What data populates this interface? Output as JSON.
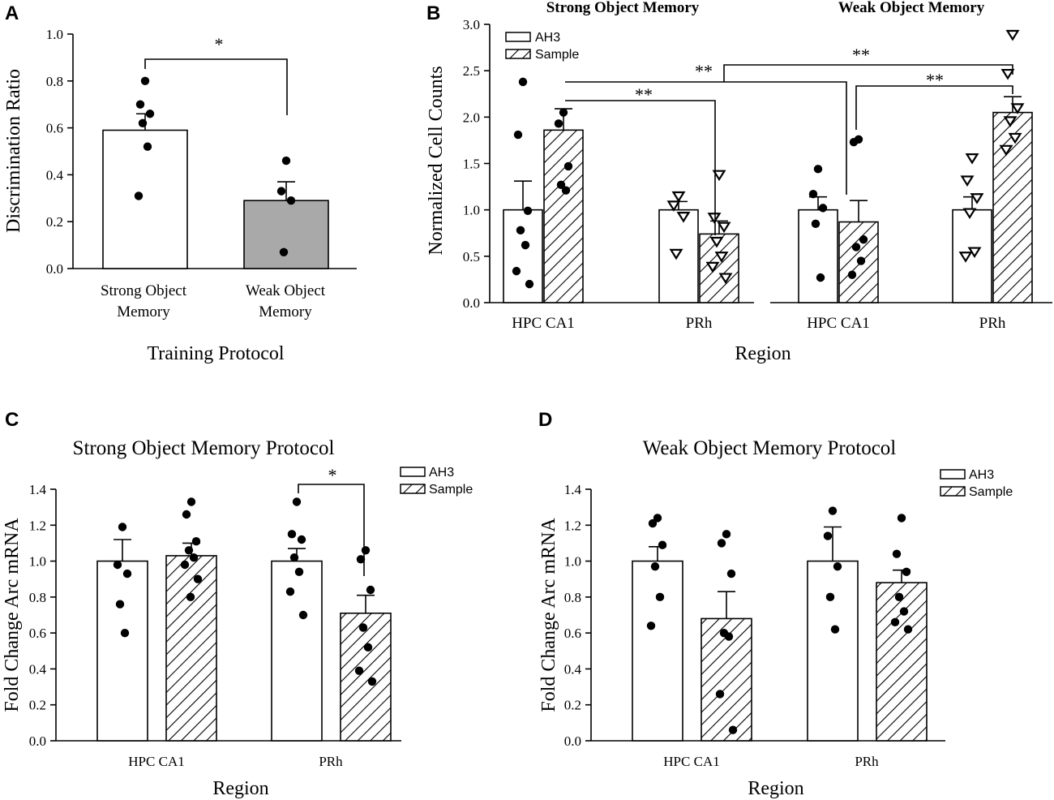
{
  "chart_data": [
    {
      "id": "A",
      "panel_label": "A",
      "type": "bar",
      "title": "",
      "xlabel": "Training Protocol",
      "ylabel": "Discrimination Ratio",
      "ylim": [
        0,
        1.0
      ],
      "yticks": [
        "0.0",
        "0.2",
        "0.4",
        "0.6",
        "0.8",
        "1.0"
      ],
      "categories": [
        "Strong Object Memory",
        "Weak Object Memory"
      ],
      "category_lines": [
        [
          "Strong Object",
          "Memory"
        ],
        [
          "Weak Object",
          "Memory"
        ]
      ],
      "values": [
        0.59,
        0.29
      ],
      "errors": [
        0.07,
        0.08
      ],
      "fills": [
        "#ffffff",
        "#a9a9a9"
      ],
      "points": [
        [
          0.8,
          0.7,
          0.66,
          0.62,
          0.52,
          0.31
        ],
        [
          0.46,
          0.33,
          0.29,
          0.07
        ]
      ],
      "significance": [
        {
          "label": "*",
          "between": [
            "Strong Object Memory",
            "Weak Object Memory"
          ]
        }
      ]
    },
    {
      "id": "B",
      "panel_label": "B",
      "type": "bar",
      "xlabel": "Region",
      "ylabel": "Normalized Cell Counts",
      "ylim": [
        0,
        3.0
      ],
      "yticks": [
        "0.0",
        "0.5",
        "1.0",
        "1.5",
        "2.0",
        "2.5",
        "3.0"
      ],
      "legend": [
        "AH3",
        "Sample"
      ],
      "groups": [
        {
          "title": "Strong Object Memory",
          "categories": [
            "HPC CA1",
            "PRh"
          ]
        },
        {
          "title": "Weak Object Memory",
          "categories": [
            "HPC CA1",
            "PRh"
          ]
        }
      ],
      "series": [
        {
          "name": "AH3",
          "values": [
            1.0,
            1.0,
            1.0,
            1.0
          ],
          "errors": [
            0.31,
            0.09,
            0.14,
            0.14
          ],
          "points": [
            [
              2.38,
              1.81,
              0.99,
              0.78,
              0.62,
              0.34,
              0.2
            ],
            [
              1.15,
              1.05,
              0.93,
              0.53
            ],
            [
              1.44,
              1.17,
              1.02,
              0.85,
              0.27
            ],
            [
              1.56,
              1.32,
              1.13,
              0.97,
              0.55,
              0.5
            ]
          ]
        },
        {
          "name": "Sample",
          "values": [
            1.86,
            0.74,
            0.87,
            2.05
          ],
          "errors": [
            0.23,
            0.14,
            0.23,
            0.17
          ],
          "points": [
            [
              2.05,
              1.93,
              1.47,
              1.27,
              1.21
            ],
            [
              1.38,
              0.92,
              0.82,
              0.66,
              0.5,
              0.39,
              0.27
            ],
            [
              1.76,
              1.73,
              0.68,
              0.6,
              0.45,
              0.3
            ],
            [
              2.89,
              2.47,
              2.1,
              1.96,
              1.78,
              1.65
            ]
          ]
        }
      ],
      "marker_styles": [
        "circle",
        "triangle-down"
      ],
      "significance": [
        "**",
        "**",
        "**",
        "**"
      ]
    },
    {
      "id": "C",
      "panel_label": "C",
      "type": "bar",
      "title": "Strong Object Memory Protocol",
      "xlabel": "Region",
      "ylabel": "Fold Change Arc mRNA",
      "ylim": [
        0,
        1.4
      ],
      "yticks": [
        "0.0",
        "0.2",
        "0.4",
        "0.6",
        "0.8",
        "1.0",
        "1.2",
        "1.4"
      ],
      "categories": [
        "HPC CA1",
        "PRh"
      ],
      "legend": [
        "AH3",
        "Sample"
      ],
      "series": [
        {
          "name": "AH3",
          "values": [
            1.0,
            1.0
          ],
          "errors": [
            0.12,
            0.07
          ],
          "points": [
            [
              1.19,
              0.98,
              0.93,
              0.76,
              0.6
            ],
            [
              1.33,
              1.15,
              1.12,
              1.02,
              0.94,
              0.83,
              0.7
            ]
          ]
        },
        {
          "name": "Sample",
          "values": [
            1.03,
            0.71
          ],
          "errors": [
            0.07,
            0.1
          ],
          "points": [
            [
              1.33,
              1.26,
              1.11,
              1.06,
              1.02,
              0.98,
              0.9,
              0.8
            ],
            [
              1.06,
              1.01,
              0.84,
              0.63,
              0.52,
              0.39,
              0.33
            ]
          ]
        }
      ],
      "significance": [
        {
          "label": "*",
          "between": [
            "PRh AH3",
            "PRh Sample"
          ]
        }
      ]
    },
    {
      "id": "D",
      "panel_label": "D",
      "type": "bar",
      "title": "Weak Object Memory Protocol",
      "xlabel": "Region",
      "ylabel": "Fold Change Arc mRNA",
      "ylim": [
        0,
        1.4
      ],
      "yticks": [
        "0.0",
        "0.2",
        "0.4",
        "0.6",
        "0.8",
        "1.0",
        "1.2",
        "1.4"
      ],
      "categories": [
        "HPC CA1",
        "PRh"
      ],
      "legend": [
        "AH3",
        "Sample"
      ],
      "series": [
        {
          "name": "AH3",
          "values": [
            1.0,
            1.0
          ],
          "errors": [
            0.08,
            0.19
          ],
          "points": [
            [
              1.24,
              1.21,
              1.09,
              0.97,
              0.8,
              0.64
            ],
            [
              1.28,
              1.14,
              0.97,
              0.8,
              0.62
            ]
          ]
        },
        {
          "name": "Sample",
          "values": [
            0.68,
            0.88
          ],
          "errors": [
            0.15,
            0.07
          ],
          "points": [
            [
              1.15,
              1.1,
              0.93,
              0.6,
              0.58,
              0.26,
              0.06
            ],
            [
              1.24,
              1.04,
              0.94,
              0.8,
              0.72,
              0.66,
              0.62
            ]
          ]
        }
      ],
      "significance": []
    }
  ],
  "colors": {
    "ah3_fill": "#ffffff",
    "weak_fill_A": "#a9a9a9",
    "stroke": "#000000"
  }
}
